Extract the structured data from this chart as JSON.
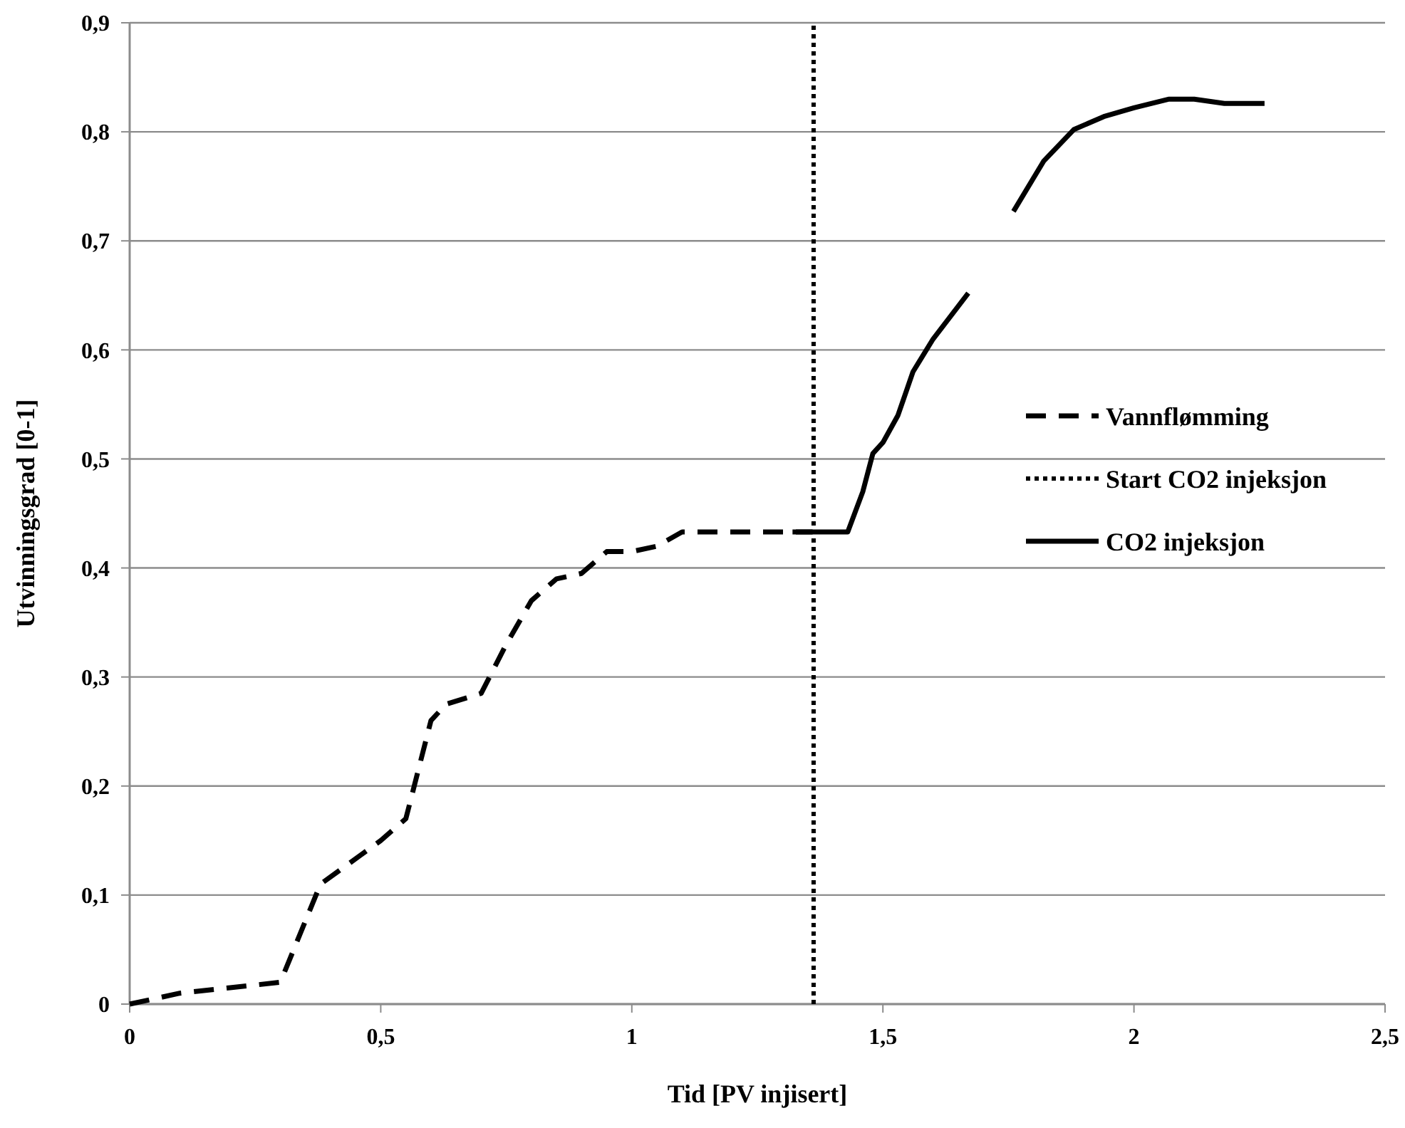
{
  "chart_data": {
    "type": "line",
    "xlabel": "Tid [PV injisert]",
    "ylabel": "Utvinningsgrad [0-1]",
    "xlim": [
      0,
      2.5
    ],
    "ylim": [
      0,
      0.9
    ],
    "xticks": [
      0,
      {
        "value": 0.5,
        "label": "0,5"
      },
      1,
      {
        "value": 1.5,
        "label": "1,5"
      },
      2,
      {
        "value": 2.5,
        "label": "2,5"
      }
    ],
    "yticks": [
      0,
      {
        "value": 0.1,
        "label": "0,1"
      },
      {
        "value": 0.2,
        "label": "0,2"
      },
      {
        "value": 0.3,
        "label": "0,3"
      },
      {
        "value": 0.4,
        "label": "0,4"
      },
      {
        "value": 0.5,
        "label": "0,5"
      },
      {
        "value": 0.6,
        "label": "0,6"
      },
      {
        "value": 0.7,
        "label": "0,7"
      },
      {
        "value": 0.8,
        "label": "0,8"
      },
      {
        "value": 0.9,
        "label": "0,9"
      }
    ],
    "grid": "y",
    "legend": "right",
    "series": [
      {
        "name": "Vannflømming",
        "color": "#000000",
        "line_style": "dashed",
        "x": [
          0,
          0.1,
          0.2,
          0.3,
          0.38,
          0.5,
          0.55,
          0.6,
          0.63,
          0.7,
          0.75,
          0.8,
          0.85,
          0.9,
          0.95,
          1.0,
          1.05,
          1.1,
          1.36
        ],
        "values": [
          0,
          0.01,
          0.015,
          0.02,
          0.11,
          0.15,
          0.17,
          0.26,
          0.275,
          0.285,
          0.33,
          0.37,
          0.39,
          0.395,
          0.415,
          0.415,
          0.42,
          0.433,
          0.433
        ]
      },
      {
        "name": "Start CO2 injeksjon",
        "color": "#000000",
        "line_style": "dotted",
        "x": [
          1.362,
          1.362
        ],
        "values": [
          0,
          0.9
        ]
      },
      {
        "name": "CO2 injeksjon",
        "color": "#000000",
        "line_style": "solid",
        "x": [
          1.32,
          1.43,
          1.46,
          1.48,
          1.5,
          1.53,
          1.56,
          1.6,
          1.67
        ],
        "values": [
          0.433,
          0.433,
          0.47,
          0.505,
          0.515,
          0.54,
          0.58,
          0.61,
          0.652
        ]
      },
      {
        "color": "#000000",
        "line_style": "solid",
        "x": [
          1.76,
          1.82,
          1.88,
          1.94,
          2.0,
          2.07,
          2.12,
          2.18,
          2.26
        ],
        "values": [
          0.727,
          0.773,
          0.802,
          0.814,
          0.822,
          0.83,
          0.83,
          0.826,
          0.826
        ]
      }
    ]
  }
}
